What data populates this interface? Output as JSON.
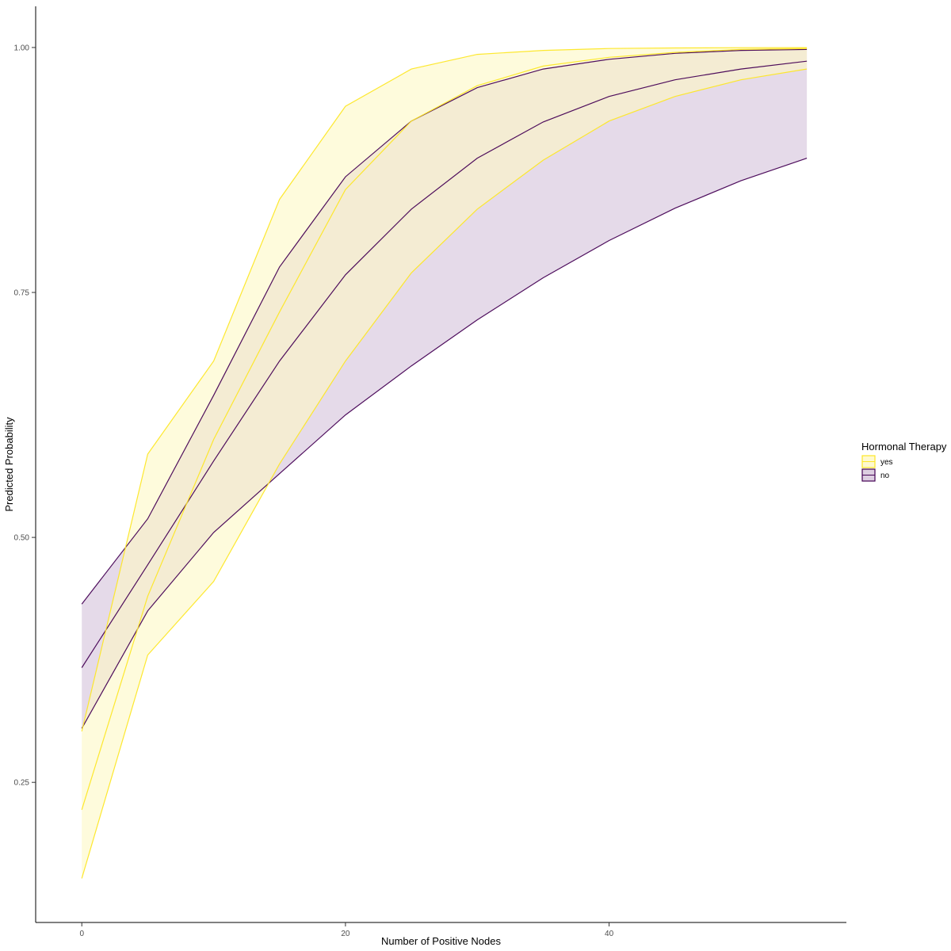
{
  "chart_data": {
    "type": "area",
    "title": "",
    "xlabel": "Number of Positive Nodes",
    "ylabel": "Predicted Probability",
    "xlim": [
      -3.5,
      58
    ],
    "ylim": [
      0.107,
      1.042
    ],
    "x_ticks": [
      0,
      20,
      40
    ],
    "y_ticks": [
      0.25,
      0.5,
      0.75,
      1.0
    ],
    "x_tick_labels": [
      "0",
      "20",
      "40"
    ],
    "y_tick_labels": [
      "0.25",
      "0.50",
      "0.75",
      "1.00"
    ],
    "grid": false,
    "legend": {
      "title": "Hormonal Therapy",
      "placement": "right",
      "entries": [
        "yes",
        "no"
      ]
    },
    "x": [
      0,
      5,
      10,
      15,
      20,
      25,
      30,
      35,
      40,
      45,
      50,
      55
    ],
    "series": [
      {
        "name": "yes",
        "color": "#FDE725",
        "fill": "#FEF8C4",
        "fill_opacity": 0.6,
        "fit": [
          0.222,
          0.44,
          0.6,
          0.73,
          0.855,
          0.925,
          0.961,
          0.981,
          0.99,
          0.995,
          0.998,
          0.999
        ],
        "lower": [
          0.152,
          0.38,
          0.455,
          0.575,
          0.68,
          0.77,
          0.835,
          0.885,
          0.925,
          0.95,
          0.967,
          0.978
        ],
        "upper": [
          0.302,
          0.585,
          0.68,
          0.845,
          0.94,
          0.978,
          0.993,
          0.997,
          0.999,
          0.9995,
          0.9998,
          0.9999
        ]
      },
      {
        "name": "no",
        "color": "#440154",
        "fill": "#D4C2DA",
        "fill_opacity": 0.6,
        "fit": [
          0.367,
          0.472,
          0.578,
          0.68,
          0.768,
          0.835,
          0.887,
          0.924,
          0.95,
          0.967,
          0.978,
          0.986
        ],
        "lower": [
          0.305,
          0.425,
          0.505,
          0.565,
          0.625,
          0.675,
          0.722,
          0.765,
          0.803,
          0.836,
          0.864,
          0.887
        ],
        "upper": [
          0.432,
          0.519,
          0.645,
          0.776,
          0.868,
          0.925,
          0.959,
          0.978,
          0.988,
          0.994,
          0.997,
          0.998
        ]
      }
    ]
  }
}
